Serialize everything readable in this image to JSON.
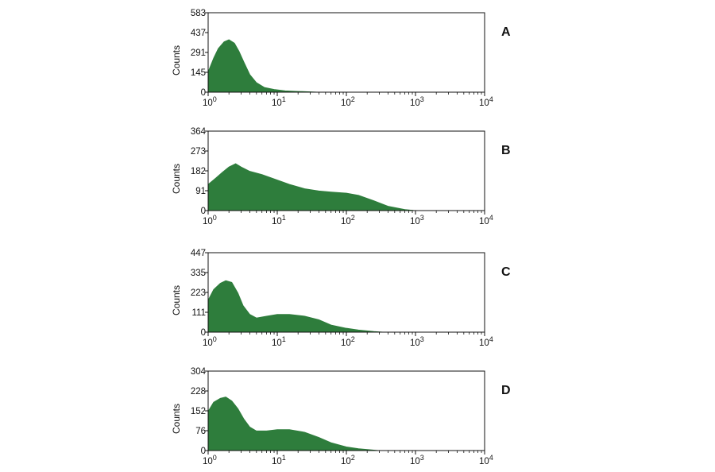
{
  "colors": {
    "fill": "#2e7d3c",
    "axis": "#111111"
  },
  "chart_data": [
    {
      "type": "area",
      "panel_label": "A",
      "ylabel": "Counts",
      "xscale": "log",
      "xlim": [
        1,
        10000
      ],
      "ylim": [
        0,
        583
      ],
      "yticks": [
        "0",
        "145",
        "291",
        "437",
        "583"
      ],
      "xticks": [
        {
          "base": "10",
          "exp": "0"
        },
        {
          "base": "10",
          "exp": "1"
        },
        {
          "base": "10",
          "exp": "2"
        },
        {
          "base": "10",
          "exp": "3"
        },
        {
          "base": "10",
          "exp": "4"
        }
      ],
      "x": [
        1,
        1.2,
        1.4,
        1.7,
        2,
        2.4,
        2.8,
        3.3,
        4,
        5,
        6.5,
        9,
        13,
        20,
        30,
        40
      ],
      "y": [
        150,
        250,
        320,
        370,
        385,
        360,
        300,
        220,
        130,
        70,
        35,
        20,
        10,
        6,
        3,
        0
      ]
    },
    {
      "type": "area",
      "panel_label": "B",
      "ylabel": "Counts",
      "xscale": "log",
      "xlim": [
        1,
        10000
      ],
      "ylim": [
        0,
        364
      ],
      "yticks": [
        "0",
        "91",
        "182",
        "273",
        "364"
      ],
      "xticks": [
        {
          "base": "10",
          "exp": "0"
        },
        {
          "base": "10",
          "exp": "1"
        },
        {
          "base": "10",
          "exp": "2"
        },
        {
          "base": "10",
          "exp": "3"
        },
        {
          "base": "10",
          "exp": "4"
        }
      ],
      "x": [
        1,
        1.3,
        1.6,
        2,
        2.5,
        3,
        4,
        6,
        10,
        15,
        25,
        40,
        60,
        100,
        150,
        250,
        400,
        700,
        1000
      ],
      "y": [
        120,
        150,
        175,
        200,
        215,
        200,
        180,
        165,
        140,
        120,
        100,
        90,
        85,
        80,
        70,
        45,
        20,
        5,
        0
      ]
    },
    {
      "type": "area",
      "panel_label": "C",
      "ylabel": "Counts",
      "xscale": "log",
      "xlim": [
        1,
        10000
      ],
      "ylim": [
        0,
        447
      ],
      "yticks": [
        "0",
        "111",
        "223",
        "335",
        "447"
      ],
      "xticks": [
        {
          "base": "10",
          "exp": "0"
        },
        {
          "base": "10",
          "exp": "1"
        },
        {
          "base": "10",
          "exp": "2"
        },
        {
          "base": "10",
          "exp": "3"
        },
        {
          "base": "10",
          "exp": "4"
        }
      ],
      "x": [
        1,
        1.2,
        1.5,
        1.8,
        2.2,
        2.7,
        3.2,
        4,
        5,
        7,
        10,
        15,
        25,
        40,
        60,
        100,
        150,
        250,
        350
      ],
      "y": [
        180,
        240,
        275,
        290,
        280,
        220,
        150,
        100,
        80,
        90,
        100,
        100,
        90,
        70,
        40,
        22,
        12,
        4,
        0
      ]
    },
    {
      "type": "area",
      "panel_label": "D",
      "ylabel": "Counts",
      "xscale": "log",
      "xlim": [
        1,
        10000
      ],
      "ylim": [
        0,
        304
      ],
      "yticks": [
        "0",
        "76",
        "152",
        "228",
        "304"
      ],
      "xticks": [
        {
          "base": "10",
          "exp": "0"
        },
        {
          "base": "10",
          "exp": "1"
        },
        {
          "base": "10",
          "exp": "2"
        },
        {
          "base": "10",
          "exp": "3"
        },
        {
          "base": "10",
          "exp": "4"
        }
      ],
      "x": [
        1,
        1.2,
        1.5,
        1.8,
        2.2,
        2.7,
        3.3,
        4,
        5,
        7,
        10,
        15,
        25,
        40,
        60,
        100,
        150,
        250,
        300
      ],
      "y": [
        150,
        185,
        200,
        205,
        190,
        160,
        120,
        90,
        75,
        75,
        80,
        80,
        70,
        50,
        30,
        14,
        7,
        2,
        0
      ]
    }
  ]
}
